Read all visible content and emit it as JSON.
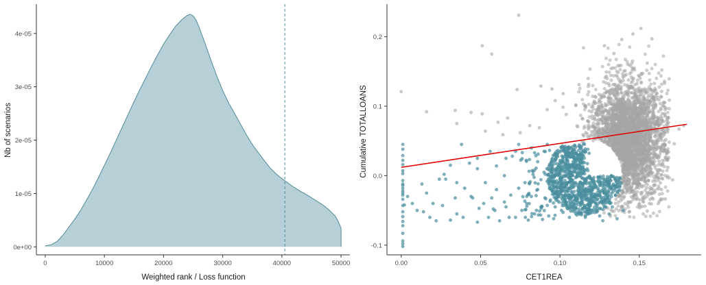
{
  "chart_data": [
    {
      "type": "area",
      "title": "",
      "xlabel": "Weighted rank / Loss function",
      "ylabel": "Nb of scenarios",
      "xlim": [
        -1500,
        51500
      ],
      "ylim": [
        -1.5e-06,
        4.55e-05
      ],
      "x_ticks": [
        0,
        10000,
        20000,
        30000,
        40000,
        50000
      ],
      "x_tick_labels": [
        "0",
        "10000",
        "20000",
        "30000",
        "40000",
        "50000"
      ],
      "y_ticks": [
        0,
        1e-05,
        2e-05,
        3e-05,
        4e-05
      ],
      "y_tick_labels": [
        "0e+00",
        "1e-05",
        "2e-05",
        "3e-05",
        "4e-05"
      ],
      "grid": false,
      "fill_color": "#b7cfd6",
      "line_color": "#4f8a99",
      "vline": {
        "x": 40500,
        "style": "dashed",
        "color": "#4f8a99"
      },
      "density": [
        [
          0,
          2e-07
        ],
        [
          1000,
          4e-07
        ],
        [
          2000,
          1e-06
        ],
        [
          3000,
          2.2e-06
        ],
        [
          4000,
          3.7e-06
        ],
        [
          5000,
          5.2e-06
        ],
        [
          6000,
          6.9e-06
        ],
        [
          7000,
          8.8e-06
        ],
        [
          8000,
          1.08e-05
        ],
        [
          9000,
          1.3e-05
        ],
        [
          10000,
          1.53e-05
        ],
        [
          11000,
          1.76e-05
        ],
        [
          12000,
          2e-05
        ],
        [
          13000,
          2.24e-05
        ],
        [
          14000,
          2.48e-05
        ],
        [
          15000,
          2.72e-05
        ],
        [
          16000,
          2.95e-05
        ],
        [
          17000,
          3.17e-05
        ],
        [
          18000,
          3.39e-05
        ],
        [
          19000,
          3.6e-05
        ],
        [
          20000,
          3.8e-05
        ],
        [
          21000,
          3.97e-05
        ],
        [
          22000,
          4.13e-05
        ],
        [
          23000,
          4.25e-05
        ],
        [
          24000,
          4.34e-05
        ],
        [
          24500,
          4.36e-05
        ],
        [
          25000,
          4.33e-05
        ],
        [
          25500,
          4.25e-05
        ],
        [
          26000,
          4.12e-05
        ],
        [
          27000,
          3.82e-05
        ],
        [
          28000,
          3.5e-05
        ],
        [
          29000,
          3.2e-05
        ],
        [
          30000,
          2.93e-05
        ],
        [
          31000,
          2.7e-05
        ],
        [
          32000,
          2.5e-05
        ],
        [
          33000,
          2.3e-05
        ],
        [
          34000,
          2.1e-05
        ],
        [
          35000,
          1.92e-05
        ],
        [
          36000,
          1.77e-05
        ],
        [
          37000,
          1.62e-05
        ],
        [
          38000,
          1.48e-05
        ],
        [
          39000,
          1.37e-05
        ],
        [
          40000,
          1.28e-05
        ],
        [
          41000,
          1.2e-05
        ],
        [
          42000,
          1.12e-05
        ],
        [
          43000,
          1.05e-05
        ],
        [
          44000,
          9.9e-06
        ],
        [
          45000,
          9.2e-06
        ],
        [
          46000,
          8.5e-06
        ],
        [
          47000,
          7.8e-06
        ],
        [
          48000,
          6.9e-06
        ],
        [
          49000,
          5.8e-06
        ],
        [
          49500,
          4.8e-06
        ],
        [
          50000,
          3.5e-06
        ]
      ]
    },
    {
      "type": "scatter",
      "title": "",
      "xlabel": "CET1REA",
      "ylabel": "Cumulative TOTALLOANS",
      "xlim": [
        -0.009,
        0.189
      ],
      "ylim": [
        -0.114,
        0.247
      ],
      "x_ticks": [
        0,
        0.05,
        0.1,
        0.15
      ],
      "x_tick_labels": [
        "0.00",
        "0.05",
        "0.10",
        "0.15"
      ],
      "y_ticks": [
        -0.1,
        0,
        0.1,
        0.2
      ],
      "y_tick_labels": [
        "-0.1",
        "0.0",
        "0.1",
        "0.2"
      ],
      "grid": false,
      "series": [
        {
          "role": "background",
          "color": "#a6a6a6",
          "description_points": "dense gray cloud centred near (0.14, 0.05)"
        },
        {
          "role": "highlighted",
          "color": "#4a8f9e",
          "description_points": "teal half-disc / scatter below the fit line"
        }
      ],
      "fit_line": {
        "color": "#e00000",
        "x": [
          0,
          0.18
        ],
        "y": [
          0.012,
          0.074
        ]
      },
      "gray_outliers": [
        [
          0.074,
          0.231
        ],
        [
          0.051,
          0.187
        ],
        [
          0.057,
          0.175
        ],
        [
          0.0,
          0.121
        ],
        [
          0.073,
          0.124
        ],
        [
          0.095,
          0.125
        ],
        [
          0.034,
          0.094
        ],
        [
          0.044,
          0.091
        ],
        [
          0.016,
          0.092
        ],
        [
          0.051,
          0.089
        ],
        [
          0.061,
          0.077
        ],
        [
          0.067,
          0.083
        ],
        [
          0.075,
          0.062
        ],
        [
          0.081,
          0.072
        ],
        [
          0.087,
          0.069
        ],
        [
          0.035,
          0.075
        ],
        [
          0.088,
          0.129
        ],
        [
          0.097,
          0.108
        ],
        [
          0.102,
          0.118
        ],
        [
          0.112,
          0.131
        ],
        [
          0.053,
          0.064
        ],
        [
          0.064,
          0.059
        ],
        [
          0.104,
          0.088
        ],
        [
          0.11,
          0.101
        ],
        [
          0.092,
          0.095
        ],
        [
          0.175,
          0.067
        ],
        [
          0.172,
          0.046
        ],
        [
          0.178,
          0.072
        ],
        [
          0.168,
          0.012
        ],
        [
          0.164,
          -0.02
        ],
        [
          0.158,
          -0.032
        ],
        [
          0.166,
          0.105
        ],
        [
          0.161,
          0.118
        ],
        [
          0.155,
          0.162
        ],
        [
          0.146,
          0.204
        ],
        [
          0.151,
          0.212
        ],
        [
          0.139,
          0.196
        ],
        [
          0.158,
          0.197
        ],
        [
          0.128,
          0.187
        ],
        [
          0.134,
          0.176
        ],
        [
          0.171,
          -0.006
        ],
        [
          0.162,
          -0.04
        ],
        [
          0.155,
          -0.051
        ]
      ],
      "teal_outliers": [
        [
          0.001,
          0.045
        ],
        [
          0.001,
          0.038
        ],
        [
          0.001,
          0.029
        ],
        [
          0.001,
          0.022
        ],
        [
          0.001,
          0.016
        ],
        [
          0.001,
          0.007
        ],
        [
          0.001,
          0.003
        ],
        [
          0.001,
          -0.007
        ],
        [
          0.001,
          -0.014
        ],
        [
          0.001,
          -0.022
        ],
        [
          0.001,
          -0.028
        ],
        [
          0.001,
          -0.034
        ],
        [
          0.001,
          -0.043
        ],
        [
          0.001,
          -0.052
        ],
        [
          0.001,
          -0.059
        ],
        [
          0.001,
          -0.066
        ],
        [
          0.001,
          -0.072
        ],
        [
          0.001,
          -0.083
        ],
        [
          0.001,
          -0.094
        ],
        [
          0.001,
          -0.098
        ],
        [
          0.001,
          -0.102
        ],
        [
          0.001,
          -0.012
        ],
        [
          0.001,
          -0.018
        ],
        [
          0.001,
          -0.025
        ],
        [
          0.002,
          -0.042
        ],
        [
          0.004,
          -0.03
        ],
        [
          0.007,
          -0.04
        ],
        [
          0.01,
          -0.05
        ],
        [
          0.014,
          -0.052
        ],
        [
          0.018,
          -0.06
        ],
        [
          0.022,
          -0.065
        ],
        [
          0.026,
          -0.043
        ],
        [
          0.02,
          -0.04
        ],
        [
          0.031,
          -0.064
        ],
        [
          0.035,
          -0.055
        ],
        [
          0.039,
          -0.06
        ],
        [
          0.044,
          -0.03
        ],
        [
          0.048,
          -0.067
        ],
        [
          0.052,
          -0.04
        ],
        [
          0.055,
          -0.06
        ],
        [
          0.059,
          -0.05
        ],
        [
          0.062,
          -0.065
        ],
        [
          0.066,
          -0.045
        ],
        [
          0.068,
          -0.06
        ],
        [
          0.072,
          -0.06
        ],
        [
          0.076,
          -0.05
        ],
        [
          0.08,
          -0.064
        ],
        [
          0.084,
          -0.055
        ],
        [
          0.089,
          -0.063
        ],
        [
          0.093,
          -0.058
        ],
        [
          0.096,
          -0.062
        ],
        [
          0.016,
          -0.025
        ],
        [
          0.013,
          -0.012
        ],
        [
          0.024,
          -0.005
        ],
        [
          0.038,
          0.045
        ],
        [
          0.043,
          0.018
        ],
        [
          0.048,
          0.01
        ],
        [
          0.056,
          0.035
        ],
        [
          0.06,
          0.014
        ],
        [
          0.065,
          0.0
        ],
        [
          0.07,
          0.028
        ],
        [
          0.074,
          0.045
        ],
        [
          0.078,
          -0.01
        ],
        [
          0.082,
          0.04
        ],
        [
          0.086,
          -0.02
        ],
        [
          0.09,
          0.035
        ],
        [
          0.094,
          -0.035
        ],
        [
          0.098,
          0.03
        ],
        [
          0.092,
          0.045
        ],
        [
          0.072,
          0.035
        ],
        [
          0.066,
          0.025
        ],
        [
          0.048,
          0.025
        ],
        [
          0.053,
          -0.01
        ],
        [
          0.06,
          -0.02
        ],
        [
          0.04,
          -0.018
        ],
        [
          0.035,
          -0.01
        ],
        [
          0.028,
          -0.005
        ],
        [
          0.045,
          -0.032
        ],
        [
          0.057,
          -0.032
        ],
        [
          0.069,
          -0.028
        ],
        [
          0.082,
          -0.03
        ],
        [
          0.088,
          -0.045
        ],
        [
          0.079,
          -0.04
        ],
        [
          0.097,
          -0.045
        ],
        [
          0.101,
          -0.05
        ],
        [
          0.106,
          -0.06
        ],
        [
          0.11,
          -0.055
        ],
        [
          0.116,
          -0.06
        ],
        [
          0.12,
          -0.05
        ],
        [
          0.125,
          -0.058
        ],
        [
          0.131,
          -0.055
        ],
        [
          0.136,
          -0.062
        ],
        [
          0.14,
          -0.05
        ],
        [
          0.127,
          -0.065
        ],
        [
          0.133,
          -0.045
        ],
        [
          0.027,
          0.002
        ],
        [
          0.031,
          0.015
        ],
        [
          0.034,
          -0.032
        ],
        [
          0.074,
          -0.018
        ],
        [
          0.084,
          0.008
        ],
        [
          0.086,
          0.02
        ],
        [
          0.09,
          0.005
        ],
        [
          0.065,
          -0.038
        ],
        [
          0.049,
          -0.047
        ],
        [
          0.058,
          -0.048
        ]
      ]
    }
  ]
}
